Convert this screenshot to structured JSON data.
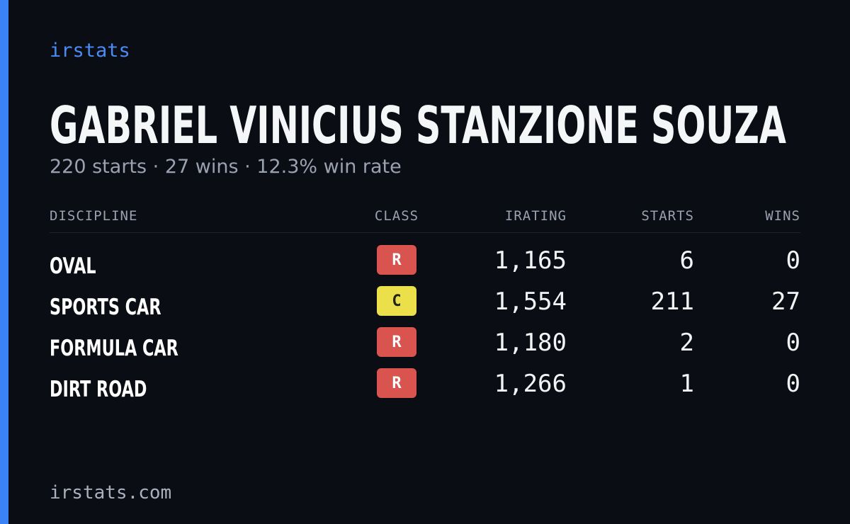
{
  "brand": "irstats",
  "driver": {
    "name": "GABRIEL VINICIUS STANZIONE SOUZA",
    "summary": "220 starts · 27 wins · 12.3% win rate"
  },
  "table": {
    "columns": [
      "DISCIPLINE",
      "CLASS",
      "IRATING",
      "STARTS",
      "WINS"
    ],
    "rows": [
      [
        "OVAL",
        "R",
        "1,165",
        "6",
        "0"
      ],
      [
        "SPORTS CAR",
        "C",
        "1,554",
        "211",
        "27"
      ],
      [
        "FORMULA CAR",
        "R",
        "1,180",
        "2",
        "0"
      ],
      [
        "DIRT ROAD",
        "R",
        "1,266",
        "1",
        "0"
      ]
    ],
    "class_colors": [
      "#d9534f",
      "#ebe04a",
      "#d9534f",
      "#d9534f"
    ]
  },
  "footer": "irstats.com"
}
